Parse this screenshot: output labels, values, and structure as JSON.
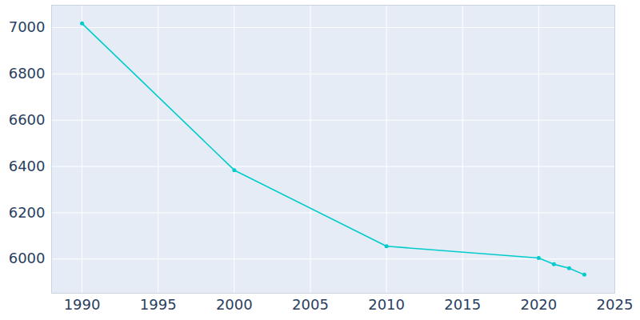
{
  "chart_data": {
    "type": "line",
    "x": [
      1990,
      2000,
      2010,
      2020,
      2021,
      2022,
      2023
    ],
    "values": [
      7018,
      6384,
      6055,
      6004,
      5977,
      5960,
      5932
    ],
    "color": "#00cccc",
    "marker": "circle",
    "xlim": [
      1988,
      2025
    ],
    "xticks": [
      1990,
      1995,
      2000,
      2005,
      2010,
      2015,
      2020,
      2025
    ],
    "ylim": [
      5852,
      7097
    ],
    "yticks": [
      6000,
      6200,
      6400,
      6600,
      6800,
      7000
    ],
    "grid": true
  }
}
